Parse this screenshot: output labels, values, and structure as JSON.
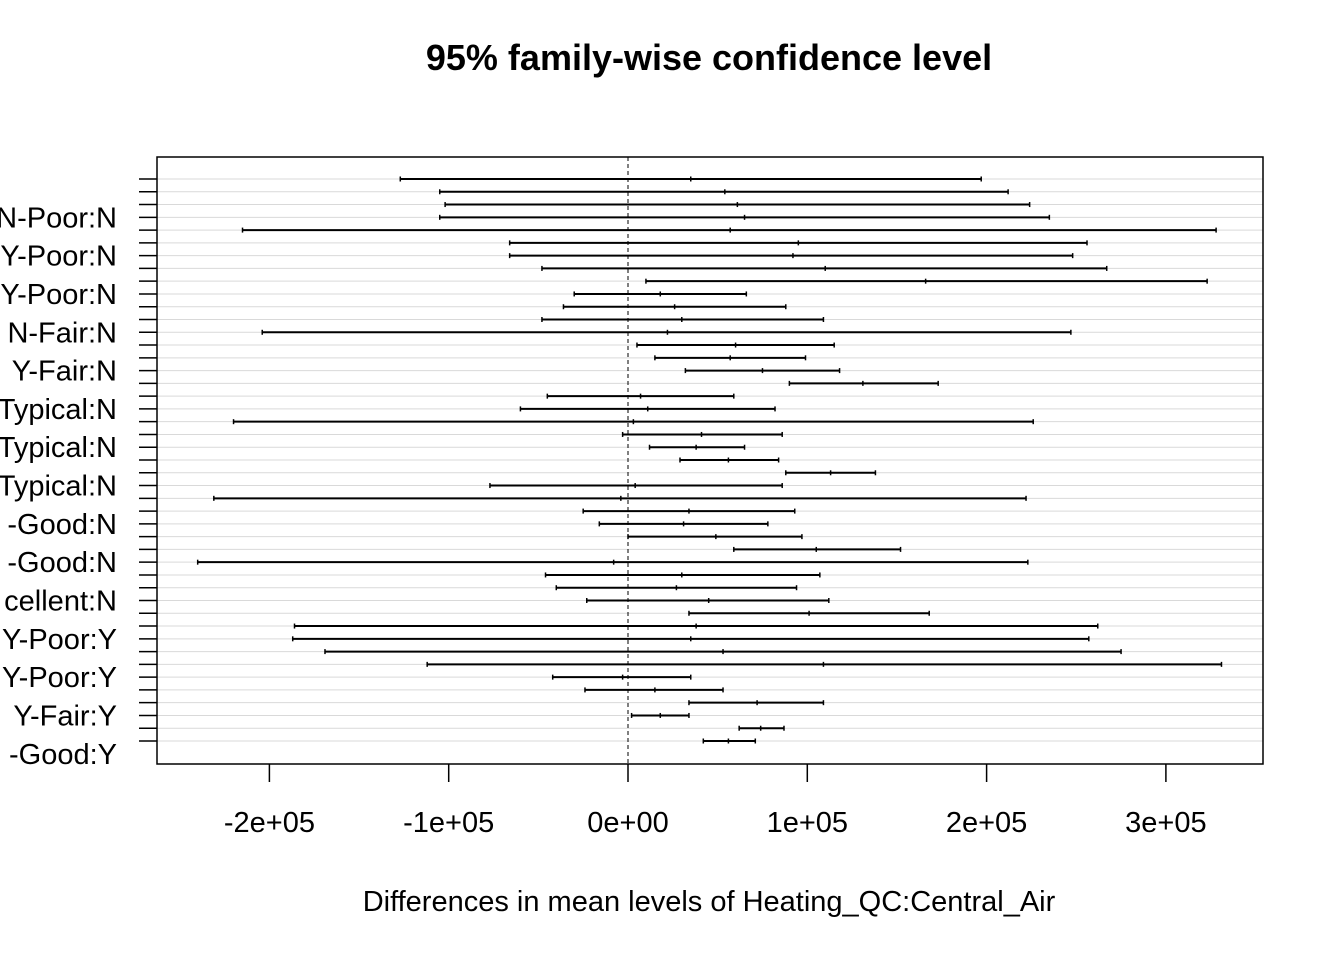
{
  "chart_data": {
    "type": "interval",
    "title": "95% family-wise confidence level",
    "xlabel": "Differences in mean levels of Heating_QC:Central_Air",
    "ylabel": "",
    "xlim": [
      -260000,
      357000
    ],
    "x_ticks": [
      -200000,
      -100000,
      0,
      100000,
      200000,
      300000
    ],
    "x_tick_labels": [
      "-2e+05",
      "-1e+05",
      "0e+00",
      "1e+05",
      "2e+05",
      "3e+05"
    ],
    "reference_line": 0,
    "grid": "horizontal",
    "visible_y_labels": [
      {
        "row": 3,
        "text": "N-Poor:N"
      },
      {
        "row": 6,
        "text": "Y-Poor:N"
      },
      {
        "row": 9,
        "text": "Y-Poor:N"
      },
      {
        "row": 12,
        "text": "N-Fair:N"
      },
      {
        "row": 15,
        "text": "Y-Fair:N"
      },
      {
        "row": 18,
        "text": "Typical:N"
      },
      {
        "row": 21,
        "text": "Typical:N"
      },
      {
        "row": 24,
        "text": "Typical:N"
      },
      {
        "row": 27,
        "text": "-Good:N"
      },
      {
        "row": 30,
        "text": "-Good:N"
      },
      {
        "row": 33,
        "text": "cellent:N"
      },
      {
        "row": 36,
        "text": "Y-Poor:Y"
      },
      {
        "row": 39,
        "text": "Y-Poor:Y"
      },
      {
        "row": 42,
        "text": "Y-Fair:Y"
      },
      {
        "row": 45,
        "text": "-Good:Y"
      }
    ],
    "intervals": [
      {
        "lwr": -127000,
        "diff": 35000,
        "upr": 197000
      },
      {
        "lwr": -105000,
        "diff": 54000,
        "upr": 212000
      },
      {
        "lwr": -102000,
        "diff": 61000,
        "upr": 224000
      },
      {
        "lwr": -105000,
        "diff": 65000,
        "upr": 235000
      },
      {
        "lwr": -215000,
        "diff": 57000,
        "upr": 328000
      },
      {
        "lwr": -66000,
        "diff": 95000,
        "upr": 256000
      },
      {
        "lwr": -66000,
        "diff": 92000,
        "upr": 248000
      },
      {
        "lwr": -48000,
        "diff": 110000,
        "upr": 267000
      },
      {
        "lwr": 10000,
        "diff": 166000,
        "upr": 323000
      },
      {
        "lwr": -30000,
        "diff": 18000,
        "upr": 66000
      },
      {
        "lwr": -36000,
        "diff": 26000,
        "upr": 88000
      },
      {
        "lwr": -48000,
        "diff": 30000,
        "upr": 109000
      },
      {
        "lwr": -204000,
        "diff": 22000,
        "upr": 247000
      },
      {
        "lwr": 5000,
        "diff": 60000,
        "upr": 115000
      },
      {
        "lwr": 15000,
        "diff": 57000,
        "upr": 99000
      },
      {
        "lwr": 32000,
        "diff": 75000,
        "upr": 118000
      },
      {
        "lwr": 90000,
        "diff": 131000,
        "upr": 173000
      },
      {
        "lwr": -45000,
        "diff": 7000,
        "upr": 59000
      },
      {
        "lwr": -60000,
        "diff": 11000,
        "upr": 82000
      },
      {
        "lwr": -220000,
        "diff": 3000,
        "upr": 226000
      },
      {
        "lwr": -3000,
        "diff": 41000,
        "upr": 86000
      },
      {
        "lwr": 12000,
        "diff": 38000,
        "upr": 65000
      },
      {
        "lwr": 29000,
        "diff": 56000,
        "upr": 84000
      },
      {
        "lwr": 88000,
        "diff": 113000,
        "upr": 138000
      },
      {
        "lwr": -77000,
        "diff": 4000,
        "upr": 86000
      },
      {
        "lwr": -231000,
        "diff": -4000,
        "upr": 222000
      },
      {
        "lwr": -25000,
        "diff": 34000,
        "upr": 93000
      },
      {
        "lwr": -16000,
        "diff": 31000,
        "upr": 78000
      },
      {
        "lwr": 0,
        "diff": 49000,
        "upr": 97000
      },
      {
        "lwr": 59000,
        "diff": 105000,
        "upr": 152000
      },
      {
        "lwr": -240000,
        "diff": -8000,
        "upr": 223000
      },
      {
        "lwr": -46000,
        "diff": 30000,
        "upr": 107000
      },
      {
        "lwr": -40000,
        "diff": 27000,
        "upr": 94000
      },
      {
        "lwr": -23000,
        "diff": 45000,
        "upr": 112000
      },
      {
        "lwr": 34000,
        "diff": 101000,
        "upr": 168000
      },
      {
        "lwr": -186000,
        "diff": 38000,
        "upr": 262000
      },
      {
        "lwr": -187000,
        "diff": 35000,
        "upr": 257000
      },
      {
        "lwr": -169000,
        "diff": 53000,
        "upr": 275000
      },
      {
        "lwr": -112000,
        "diff": 109000,
        "upr": 331000
      },
      {
        "lwr": -42000,
        "diff": -3000,
        "upr": 35000
      },
      {
        "lwr": -24000,
        "diff": 15000,
        "upr": 53000
      },
      {
        "lwr": 34000,
        "diff": 72000,
        "upr": 109000
      },
      {
        "lwr": 2000,
        "diff": 18000,
        "upr": 34000
      },
      {
        "lwr": 62000,
        "diff": 74000,
        "upr": 87000
      },
      {
        "lwr": 42000,
        "diff": 56000,
        "upr": 71000
      }
    ]
  }
}
